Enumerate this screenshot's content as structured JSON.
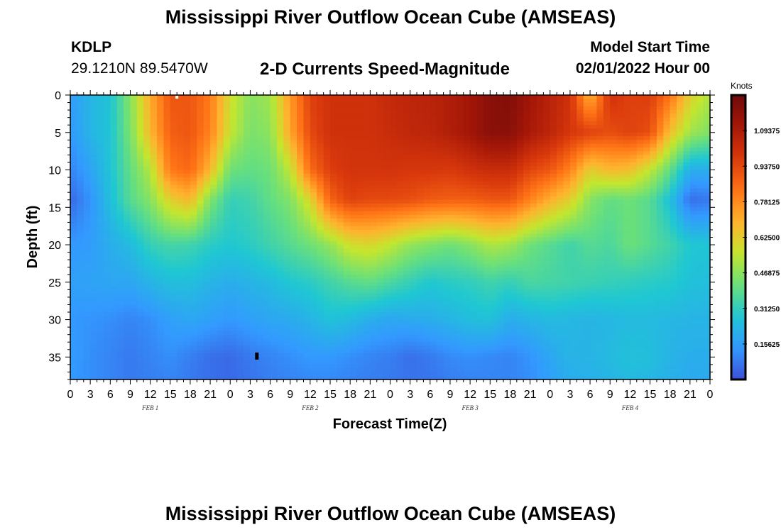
{
  "header": {
    "title": "Mississippi River Outflow Ocean Cube (AMSEAS)",
    "station": "KDLP",
    "coords": "29.1210N  89.5470W",
    "subtitle": "2-D Currents Speed-Magnitude",
    "model_start_label": "Model Start Time",
    "model_start_value": "02/01/2022 Hour 00"
  },
  "footer": {
    "title": "Mississippi River Outflow Ocean Cube (AMSEAS)"
  },
  "chart_data": {
    "type": "heatmap",
    "xlabel": "Forecast Time(Z)",
    "ylabel": "Depth (ft)",
    "x_hours_range": [
      0,
      96
    ],
    "x_tick_step_hours": 3,
    "x_tick_labels": [
      "0",
      "3",
      "6",
      "9",
      "12",
      "15",
      "18",
      "21",
      "0",
      "3",
      "6",
      "9",
      "12",
      "15",
      "18",
      "21",
      "0",
      "3",
      "6",
      "9",
      "12",
      "15",
      "18",
      "21",
      "0",
      "3",
      "6",
      "9",
      "12",
      "15",
      "18",
      "21",
      "0"
    ],
    "date_labels": [
      {
        "label": "FEB 1",
        "hour": 12
      },
      {
        "label": "FEB 2",
        "hour": 36
      },
      {
        "label": "FEB 3",
        "hour": 60
      },
      {
        "label": "FEB 4",
        "hour": 84
      }
    ],
    "y_range_ft": [
      0,
      38
    ],
    "y_ticks": [
      0,
      5,
      10,
      15,
      20,
      25,
      30,
      35
    ],
    "y_inverted": true,
    "colorbar": {
      "title": "Knots",
      "range": [
        0,
        1.25
      ],
      "tick_labels": [
        "1.09375",
        "0.93750",
        "0.78125",
        "0.62500",
        "0.46875",
        "0.31250",
        "0.15625"
      ],
      "tick_values": [
        1.09375,
        0.9375,
        0.78125,
        0.625,
        0.46875,
        0.3125,
        0.15625
      ],
      "palette": [
        "#3d4fd9",
        "#3399ff",
        "#1fc7d3",
        "#6be07a",
        "#c4e62e",
        "#ffb22e",
        "#ff7316",
        "#d9380c",
        "#a51708",
        "#6e0a0a"
      ]
    },
    "depth_levels_ft": [
      0,
      5,
      10,
      14,
      20,
      25,
      30,
      35,
      38
    ],
    "time_hours": [
      0,
      3,
      6,
      9,
      12,
      15,
      18,
      21,
      24,
      27,
      30,
      33,
      36,
      39,
      42,
      45,
      48,
      51,
      54,
      57,
      60,
      63,
      66,
      69,
      72,
      75,
      78,
      81,
      84,
      87,
      90,
      93,
      96
    ],
    "speed_knots": [
      [
        0.15,
        0.22,
        0.27,
        0.46,
        0.71,
        0.9,
        0.9,
        0.82,
        0.58,
        0.46,
        0.5,
        0.75,
        0.95,
        1.0,
        1.0,
        1.0,
        1.03,
        1.05,
        1.06,
        1.08,
        1.12,
        1.18,
        1.2,
        1.12,
        1.06,
        1.0,
        0.68,
        1.0,
        0.95,
        0.96,
        0.84,
        0.62,
        0.52
      ],
      [
        0.14,
        0.22,
        0.27,
        0.44,
        0.68,
        0.88,
        0.9,
        0.8,
        0.56,
        0.44,
        0.47,
        0.72,
        0.93,
        1.0,
        1.0,
        1.0,
        1.02,
        1.04,
        1.05,
        1.08,
        1.12,
        1.18,
        1.18,
        1.1,
        1.05,
        0.98,
        0.95,
        0.92,
        0.95,
        0.92,
        0.66,
        0.5,
        0.45
      ],
      [
        0.1,
        0.17,
        0.27,
        0.4,
        0.53,
        0.82,
        0.86,
        0.68,
        0.42,
        0.4,
        0.42,
        0.55,
        0.85,
        0.96,
        0.99,
        0.99,
        0.99,
        0.98,
        0.98,
        0.97,
        1.0,
        1.02,
        1.02,
        0.94,
        0.9,
        0.8,
        0.62,
        0.68,
        0.66,
        0.55,
        0.4,
        0.2,
        0.2
      ],
      [
        0.05,
        0.13,
        0.25,
        0.38,
        0.46,
        0.62,
        0.68,
        0.45,
        0.32,
        0.34,
        0.4,
        0.45,
        0.6,
        0.87,
        0.95,
        0.93,
        0.93,
        0.92,
        0.89,
        0.88,
        0.88,
        0.9,
        0.9,
        0.8,
        0.7,
        0.62,
        0.46,
        0.4,
        0.42,
        0.38,
        0.26,
        0.06,
        0.08
      ],
      [
        0.14,
        0.15,
        0.2,
        0.24,
        0.32,
        0.35,
        0.34,
        0.3,
        0.28,
        0.3,
        0.34,
        0.38,
        0.42,
        0.48,
        0.58,
        0.6,
        0.55,
        0.48,
        0.45,
        0.42,
        0.46,
        0.52,
        0.5,
        0.42,
        0.38,
        0.34,
        0.38,
        0.36,
        0.42,
        0.38,
        0.34,
        0.28,
        0.27
      ],
      [
        0.16,
        0.17,
        0.18,
        0.18,
        0.22,
        0.25,
        0.25,
        0.22,
        0.2,
        0.22,
        0.24,
        0.28,
        0.3,
        0.34,
        0.38,
        0.4,
        0.36,
        0.32,
        0.28,
        0.3,
        0.31,
        0.34,
        0.32,
        0.36,
        0.35,
        0.34,
        0.33,
        0.32,
        0.31,
        0.3,
        0.29,
        0.26,
        0.25
      ],
      [
        0.14,
        0.13,
        0.12,
        0.1,
        0.12,
        0.16,
        0.18,
        0.16,
        0.14,
        0.16,
        0.18,
        0.19,
        0.22,
        0.26,
        0.24,
        0.2,
        0.18,
        0.19,
        0.2,
        0.22,
        0.25,
        0.26,
        0.2,
        0.22,
        0.24,
        0.23,
        0.22,
        0.23,
        0.24,
        0.24,
        0.23,
        0.22,
        0.22
      ],
      [
        0.15,
        0.12,
        0.1,
        0.08,
        0.1,
        0.12,
        0.09,
        0.06,
        0.05,
        0.08,
        0.1,
        0.12,
        0.14,
        0.14,
        0.12,
        0.1,
        0.09,
        0.06,
        0.08,
        0.11,
        0.12,
        0.11,
        0.1,
        0.13,
        0.18,
        0.22,
        0.22,
        0.24,
        0.26,
        0.25,
        0.22,
        0.2,
        0.2
      ],
      [
        0.14,
        0.12,
        0.1,
        0.08,
        0.09,
        0.1,
        0.08,
        0.06,
        0.05,
        0.07,
        0.09,
        0.1,
        0.11,
        0.11,
        0.1,
        0.09,
        0.08,
        0.07,
        0.07,
        0.09,
        0.1,
        0.1,
        0.1,
        0.12,
        0.16,
        0.2,
        0.21,
        0.22,
        0.24,
        0.23,
        0.21,
        0.19,
        0.19
      ]
    ]
  }
}
